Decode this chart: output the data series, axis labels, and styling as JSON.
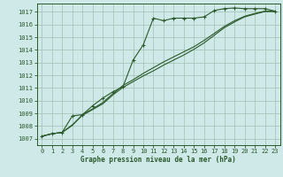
{
  "bg_color": "#cfe8e8",
  "grid_color": "#a0c0b0",
  "line_color": "#2a5a2a",
  "x_ticks": [
    0,
    1,
    2,
    3,
    4,
    5,
    6,
    7,
    8,
    9,
    10,
    11,
    12,
    13,
    14,
    15,
    16,
    17,
    18,
    19,
    20,
    21,
    22,
    23
  ],
  "y_ticks": [
    1007,
    1008,
    1009,
    1010,
    1011,
    1012,
    1013,
    1014,
    1015,
    1016,
    1017
  ],
  "ylim": [
    1006.5,
    1017.65
  ],
  "xlim": [
    -0.5,
    23.5
  ],
  "xlabel": "Graphe pression niveau de la mer (hPa)",
  "line1_y": [
    1007.2,
    1007.4,
    1007.5,
    1008.8,
    1008.9,
    1009.6,
    1010.2,
    1010.7,
    1011.1,
    1013.2,
    1014.4,
    1016.5,
    1016.3,
    1016.5,
    1016.5,
    1016.5,
    1016.6,
    1017.1,
    1017.25,
    1017.3,
    1017.25,
    1017.25,
    1017.25,
    1017.05
  ],
  "line2_y": [
    1007.2,
    1007.4,
    1007.5,
    1008.1,
    1008.85,
    1009.3,
    1009.75,
    1010.45,
    1011.05,
    1011.5,
    1011.95,
    1012.35,
    1012.8,
    1013.2,
    1013.6,
    1014.05,
    1014.55,
    1015.15,
    1015.75,
    1016.2,
    1016.6,
    1016.82,
    1017.02,
    1017.02
  ],
  "line3_y": [
    1007.2,
    1007.4,
    1007.5,
    1008.05,
    1008.9,
    1009.35,
    1009.85,
    1010.55,
    1011.2,
    1011.65,
    1012.15,
    1012.6,
    1013.05,
    1013.45,
    1013.85,
    1014.25,
    1014.75,
    1015.3,
    1015.85,
    1016.3,
    1016.65,
    1016.87,
    1017.05,
    1017.05
  ],
  "marker": "+",
  "markersize": 3.0,
  "linewidth": 0.8,
  "tick_fontsize": 5.0,
  "xlabel_fontsize": 5.5
}
